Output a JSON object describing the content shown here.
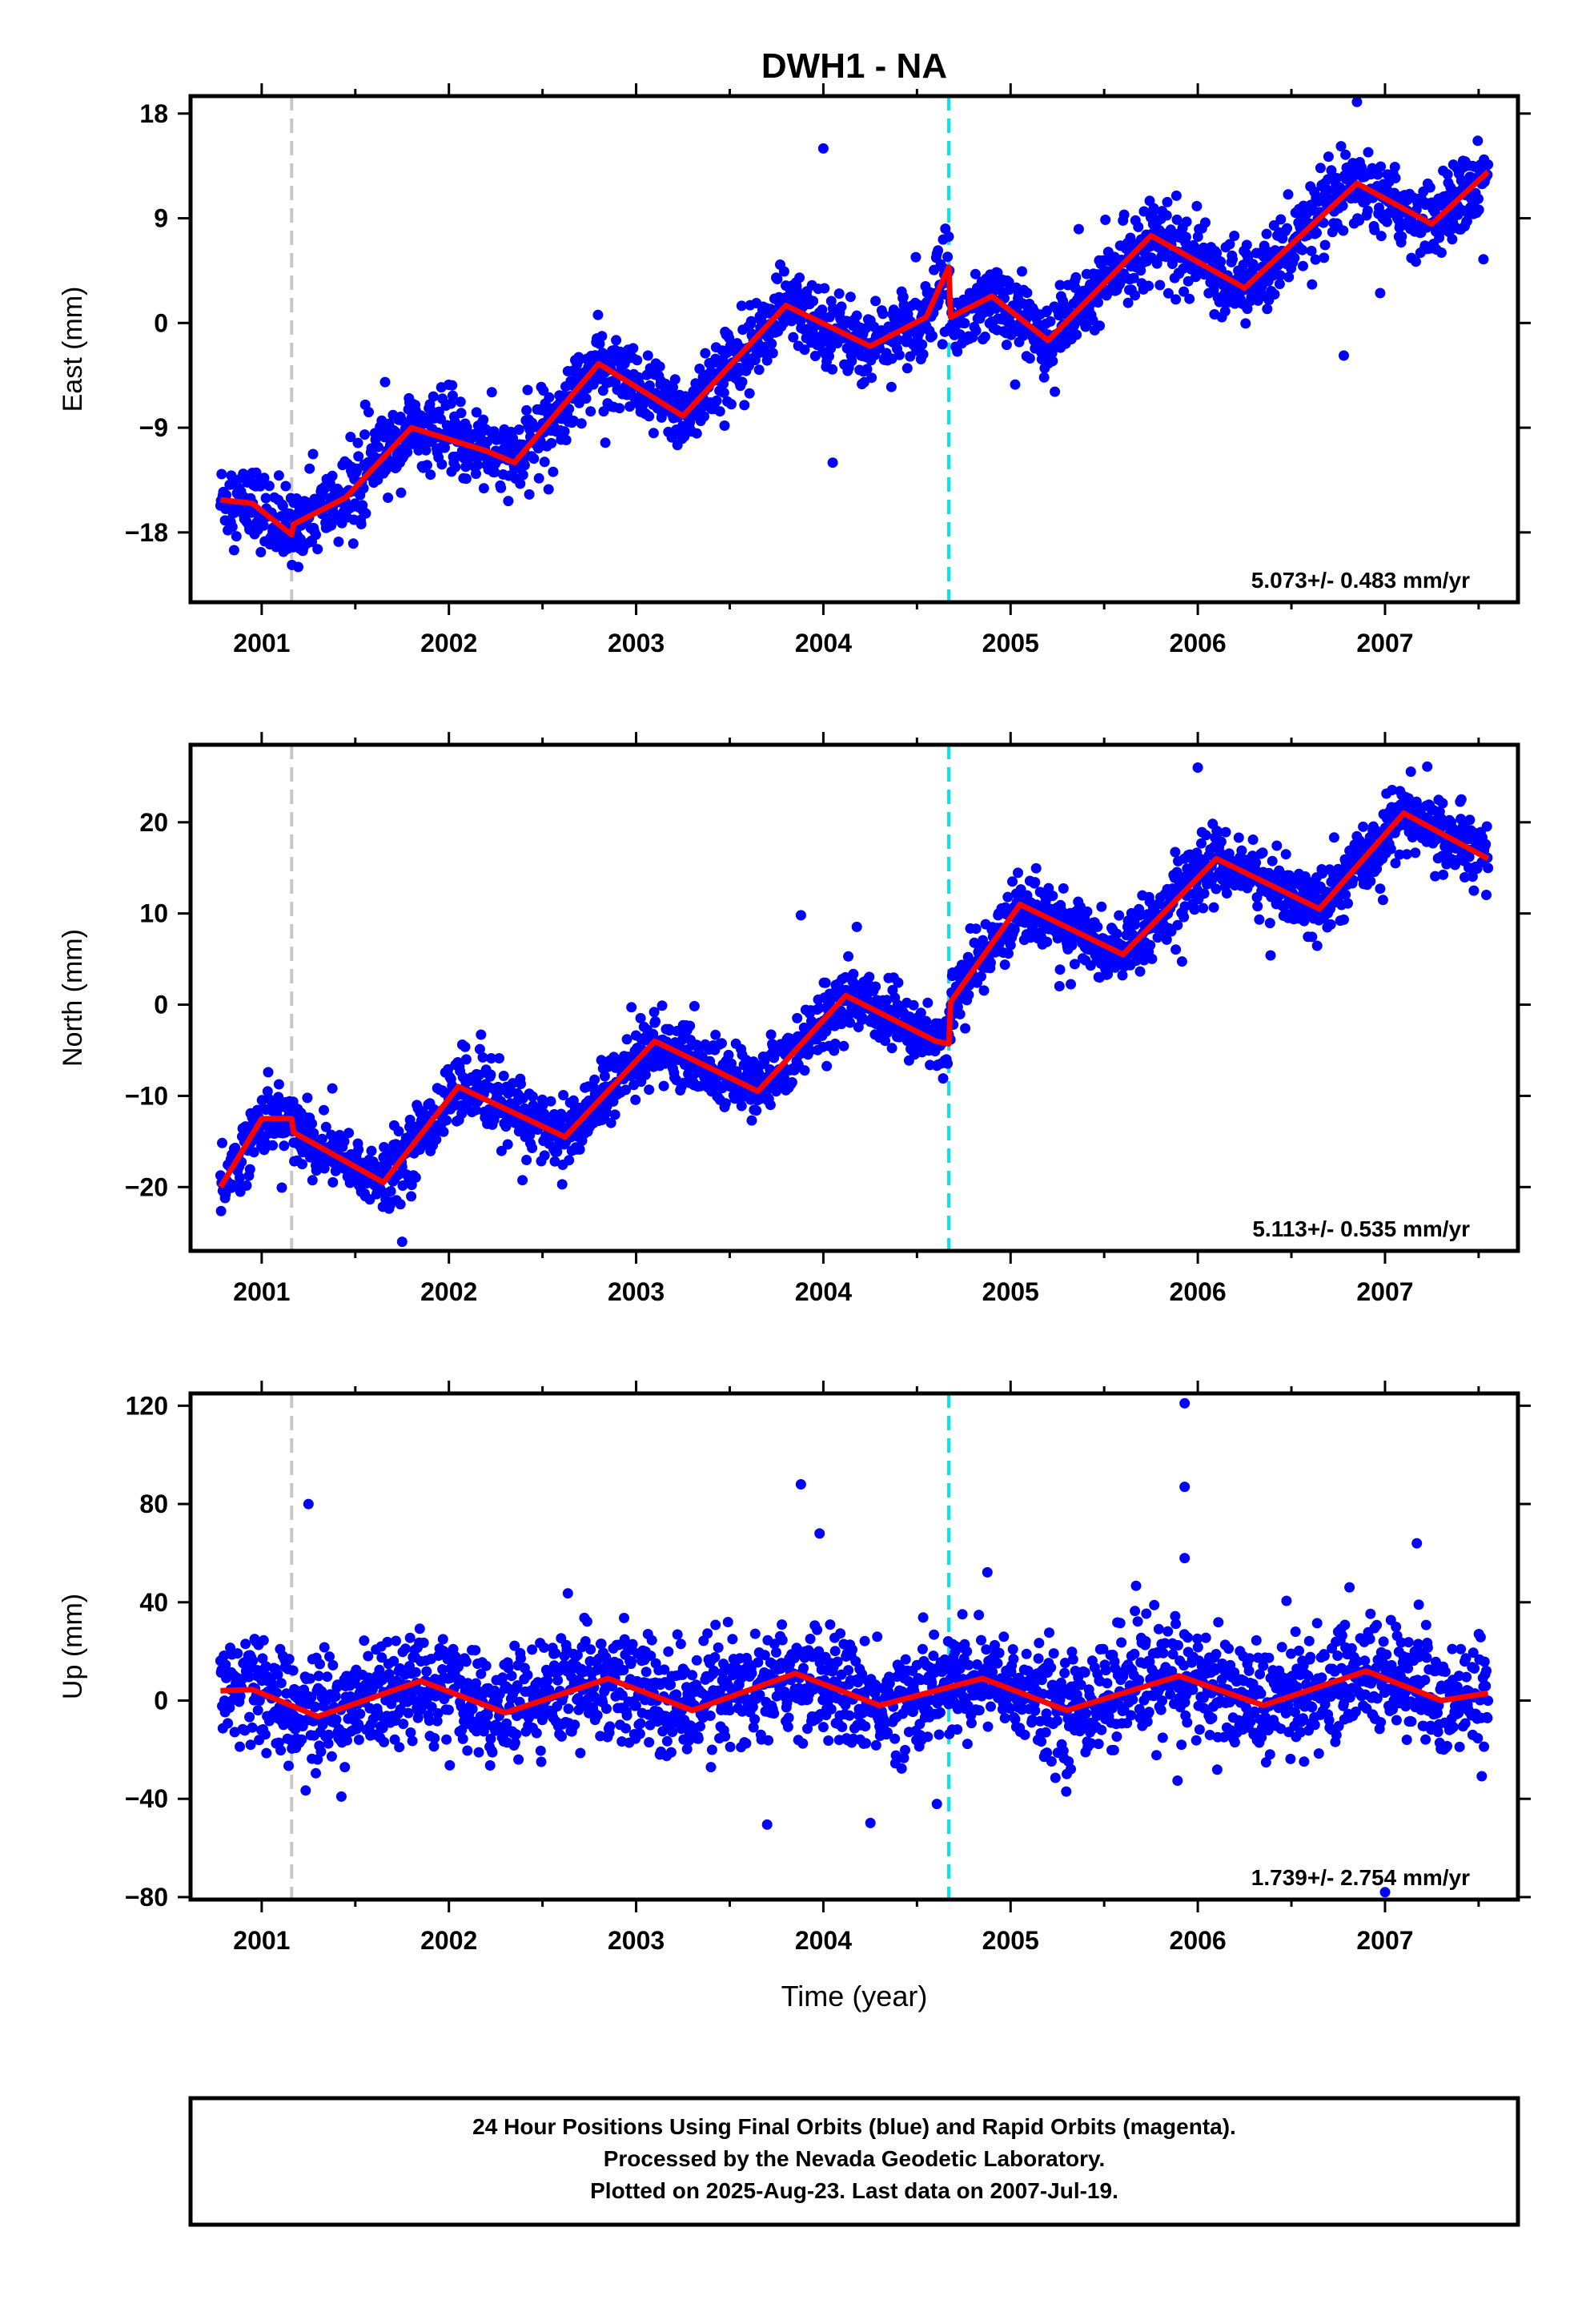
{
  "title": "DWH1 - NA",
  "xlabel": "Time (year)",
  "colors": {
    "points": "#0000ff",
    "model": "#ff0000",
    "offset_gray": "#c8c8c8",
    "offset_cyan": "#00e5ee"
  },
  "footer": {
    "line1": "24 Hour Positions Using Final Orbits (blue) and Rapid Orbits (magenta).",
    "line2": "Processed by the Nevada Geodetic Laboratory.",
    "line3": "Plotted on 2025-Aug-23. Last data on 2007-Jul-19."
  },
  "chart_data": [
    {
      "type": "scatter",
      "ylabel": "East (mm)",
      "xlim": [
        2000.62,
        2007.71
      ],
      "ylim": [
        -24,
        19.5
      ],
      "yticks": [
        18,
        9,
        0,
        -9,
        -18
      ],
      "ytick_labels": [
        "18",
        "9",
        "0",
        "−9",
        "−18"
      ],
      "xticks": [
        2001,
        2002,
        2003,
        2004,
        2005,
        2006,
        2007
      ],
      "rate_text": "5.073+/- 0.483 mm/yr",
      "offsets": [
        {
          "year": 2001.16,
          "color": "gray"
        },
        {
          "year": 2004.67,
          "color": "cyan"
        }
      ],
      "series": [
        {
          "kind": "points",
          "x_start": 2000.78,
          "x_end": 2007.55,
          "trend_per_year": 5.07,
          "annual_amplitude": 3.2,
          "noise_sd": 1.6,
          "outliers": [
            [
              2004.0,
              15.0
            ],
            [
              2004.05,
              -12.0
            ],
            [
              2006.85,
              19.0
            ],
            [
              2006.78,
              -2.8
            ]
          ]
        },
        {
          "kind": "model",
          "x": [
            2000.78,
            2000.95,
            2001.16,
            2001.17,
            2001.45,
            2001.8,
            2002.2,
            2002.35,
            2002.8,
            2003.25,
            2003.8,
            2004.25,
            2004.55,
            2004.67,
            2004.68,
            2004.9,
            2005.2,
            2005.75,
            2006.25,
            2006.85,
            2007.25,
            2007.55
          ],
          "y": [
            -15.2,
            -15.5,
            -18.2,
            -17.3,
            -15.0,
            -9.0,
            -11.0,
            -12.0,
            -3.5,
            -8.0,
            1.5,
            -2.0,
            0.5,
            4.8,
            0.5,
            2.3,
            -1.5,
            7.5,
            3.0,
            12.0,
            8.5,
            13.0
          ]
        }
      ]
    },
    {
      "type": "scatter",
      "ylabel": "North (mm)",
      "xlim": [
        2000.62,
        2007.71
      ],
      "ylim": [
        -27,
        28.5
      ],
      "yticks": [
        20,
        10,
        0,
        -10,
        -20
      ],
      "ytick_labels": [
        "20",
        "10",
        "0",
        "−10",
        "−20"
      ],
      "xticks": [
        2001,
        2002,
        2003,
        2004,
        2005,
        2006,
        2007
      ],
      "rate_text": "5.113+/- 0.535 mm/yr",
      "offsets": [
        {
          "year": 2001.16,
          "color": "gray"
        },
        {
          "year": 2004.67,
          "color": "cyan"
        }
      ],
      "series": [
        {
          "kind": "points",
          "x_start": 2000.78,
          "x_end": 2007.55,
          "trend_per_year": 5.11,
          "annual_amplitude": 4.5,
          "noise_sd": 1.8,
          "outliers": [
            [
              2003.88,
              9.8
            ],
            [
              2006.0,
              26.0
            ],
            [
              2001.75,
              -26.0
            ]
          ]
        },
        {
          "kind": "model",
          "x": [
            2000.78,
            2001.0,
            2001.16,
            2001.17,
            2001.65,
            2002.05,
            2002.62,
            2003.1,
            2003.65,
            2004.12,
            2004.6,
            2004.67,
            2004.68,
            2005.05,
            2005.6,
            2006.1,
            2006.65,
            2007.1,
            2007.55
          ],
          "y": [
            -20.0,
            -12.5,
            -12.5,
            -14.0,
            -19.5,
            -9.0,
            -14.5,
            -4.0,
            -9.5,
            1.0,
            -4.0,
            -4.3,
            0.3,
            11.0,
            5.5,
            16.0,
            10.5,
            21.0,
            16.0
          ]
        }
      ]
    },
    {
      "type": "scatter",
      "ylabel": "Up (mm)",
      "xlim": [
        2000.62,
        2007.71
      ],
      "ylim": [
        -81,
        125
      ],
      "yticks": [
        120,
        80,
        40,
        0,
        -40,
        -80
      ],
      "ytick_labels": [
        "120",
        "80",
        "40",
        "0",
        "−40",
        "−80"
      ],
      "xticks": [
        2001,
        2002,
        2003,
        2004,
        2005,
        2006,
        2007
      ],
      "rate_text": "1.739+/- 2.754 mm/yr",
      "offsets": [
        {
          "year": 2001.16,
          "color": "gray"
        },
        {
          "year": 2004.67,
          "color": "cyan"
        }
      ],
      "series": [
        {
          "kind": "points",
          "x_start": 2000.78,
          "x_end": 2007.55,
          "trend_per_year": 0.4,
          "annual_amplitude": 7.0,
          "noise_sd": 11.0,
          "outliers": [
            [
              2001.25,
              80.0
            ],
            [
              2003.88,
              88.0
            ],
            [
              2003.98,
              68.0
            ],
            [
              2005.93,
              121.0
            ],
            [
              2005.93,
              87.0
            ],
            [
              2005.93,
              58.0
            ],
            [
              2007.17,
              64.0
            ],
            [
              2007.18,
              39.0
            ],
            [
              2007.0,
              -78.0
            ]
          ]
        },
        {
          "kind": "model",
          "x": [
            2000.78,
            2000.95,
            2001.3,
            2001.85,
            2002.3,
            2002.85,
            2003.3,
            2003.85,
            2004.3,
            2004.85,
            2005.3,
            2005.9,
            2006.35,
            2006.9,
            2007.3,
            2007.55
          ],
          "y": [
            4.0,
            4.5,
            -6.5,
            8.0,
            -5.0,
            9.0,
            -4.0,
            11.0,
            -2.0,
            9.0,
            -4.0,
            10.0,
            -2.0,
            12.0,
            0.0,
            3.0
          ]
        }
      ]
    }
  ]
}
